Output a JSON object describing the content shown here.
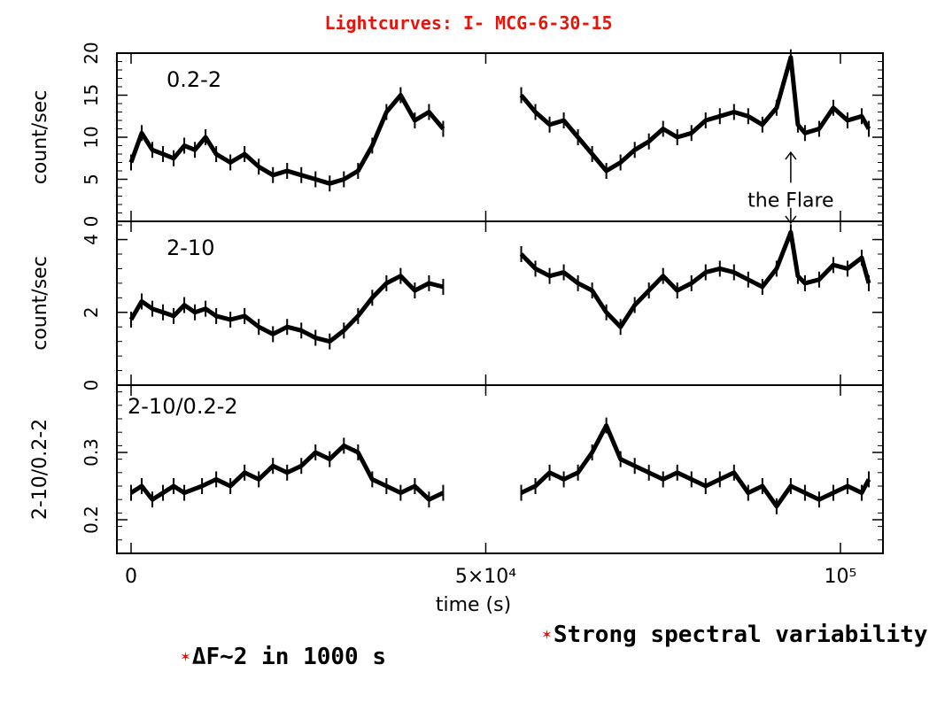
{
  "title": "Lightcurves: I- MCG-6-30-15",
  "bullets": {
    "spectral": "Strong spectral variability",
    "flux": "ΔF~2 in 1000 s"
  },
  "colors": {
    "title": "#e8140b",
    "ink": "#000000",
    "star": "#e8140b"
  },
  "chart_data": [
    {
      "type": "line",
      "band_label": "0.2-2",
      "ylabel": "count/sec",
      "ylim": [
        0,
        20
      ],
      "yticks": [
        0,
        5,
        10,
        15,
        20
      ],
      "annotation": "the Flare",
      "flare_x": 93000,
      "x": [
        0,
        1500,
        3000,
        4500,
        6000,
        7500,
        9000,
        10500,
        12000,
        14000,
        16000,
        18000,
        20000,
        22000,
        24000,
        26000,
        28000,
        30000,
        32000,
        34000,
        36000,
        38000,
        40000,
        42000,
        44000,
        55000,
        57000,
        59000,
        61000,
        63000,
        65000,
        67000,
        69000,
        71000,
        73000,
        75000,
        77000,
        79000,
        81000,
        83000,
        85000,
        87000,
        89000,
        91000,
        93000,
        94000,
        95000,
        97000,
        99000,
        101000,
        103000,
        104000
      ],
      "values": [
        7,
        10.5,
        8.5,
        8,
        7.5,
        9,
        8.5,
        10,
        8,
        7,
        8,
        6.5,
        5.5,
        6,
        5.5,
        5,
        4.5,
        5,
        6,
        9,
        13,
        15,
        12,
        13,
        11,
        15,
        13,
        11.5,
        12,
        10,
        8,
        6,
        7,
        8.5,
        9.5,
        11,
        10,
        10.5,
        12,
        12.5,
        13,
        12.5,
        11.5,
        13.5,
        19.5,
        11.5,
        10.5,
        11,
        13.5,
        12,
        12.5,
        11
      ]
    },
    {
      "type": "line",
      "band_label": "2-10",
      "ylabel": "count/sec",
      "ylim": [
        0,
        4.5
      ],
      "yticks": [
        0,
        2,
        4
      ],
      "x": [
        0,
        1500,
        3000,
        4500,
        6000,
        7500,
        9000,
        10500,
        12000,
        14000,
        16000,
        18000,
        20000,
        22000,
        24000,
        26000,
        28000,
        30000,
        32000,
        34000,
        36000,
        38000,
        40000,
        42000,
        44000,
        55000,
        57000,
        59000,
        61000,
        63000,
        65000,
        67000,
        69000,
        71000,
        73000,
        75000,
        77000,
        79000,
        81000,
        83000,
        85000,
        87000,
        89000,
        91000,
        93000,
        94000,
        95000,
        97000,
        99000,
        101000,
        103000,
        104000
      ],
      "values": [
        1.8,
        2.3,
        2.1,
        2,
        1.9,
        2.2,
        2,
        2.1,
        1.9,
        1.8,
        1.9,
        1.6,
        1.4,
        1.6,
        1.5,
        1.3,
        1.2,
        1.5,
        1.9,
        2.4,
        2.8,
        3,
        2.6,
        2.8,
        2.7,
        3.6,
        3.2,
        3,
        3.1,
        2.8,
        2.6,
        2,
        1.6,
        2.2,
        2.6,
        3,
        2.6,
        2.8,
        3.1,
        3.2,
        3.1,
        2.9,
        2.7,
        3.2,
        4.2,
        3,
        2.8,
        2.9,
        3.3,
        3.2,
        3.5,
        2.8
      ]
    },
    {
      "type": "line",
      "band_label": "2-10/0.2-2",
      "ylabel": "2-10/0.2-2",
      "xlabel": "time (s)",
      "ylim": [
        0.15,
        0.4
      ],
      "yticks": [
        0.2,
        0.3
      ],
      "xlim": [
        -2000,
        106000
      ],
      "xticks": [
        {
          "value": 0,
          "label": "0"
        },
        {
          "value": 50000,
          "label": "5×10⁴"
        },
        {
          "value": 100000,
          "label": "10⁵"
        }
      ],
      "x": [
        0,
        1500,
        3000,
        4500,
        6000,
        7500,
        10000,
        12000,
        14000,
        16000,
        18000,
        20000,
        22000,
        24000,
        26000,
        28000,
        30000,
        32000,
        34000,
        36000,
        38000,
        40000,
        42000,
        44000,
        55000,
        57000,
        59000,
        61000,
        63000,
        65000,
        67000,
        69000,
        71000,
        73000,
        75000,
        77000,
        79000,
        81000,
        83000,
        85000,
        87000,
        89000,
        91000,
        93000,
        95000,
        97000,
        99000,
        101000,
        103000,
        104000
      ],
      "values": [
        0.24,
        0.25,
        0.23,
        0.24,
        0.25,
        0.24,
        0.25,
        0.26,
        0.25,
        0.27,
        0.26,
        0.28,
        0.27,
        0.28,
        0.3,
        0.29,
        0.31,
        0.3,
        0.26,
        0.25,
        0.24,
        0.25,
        0.23,
        0.24,
        0.24,
        0.25,
        0.27,
        0.26,
        0.27,
        0.3,
        0.34,
        0.29,
        0.28,
        0.27,
        0.26,
        0.27,
        0.26,
        0.25,
        0.26,
        0.27,
        0.24,
        0.25,
        0.22,
        0.25,
        0.24,
        0.23,
        0.24,
        0.25,
        0.24,
        0.26
      ]
    }
  ]
}
